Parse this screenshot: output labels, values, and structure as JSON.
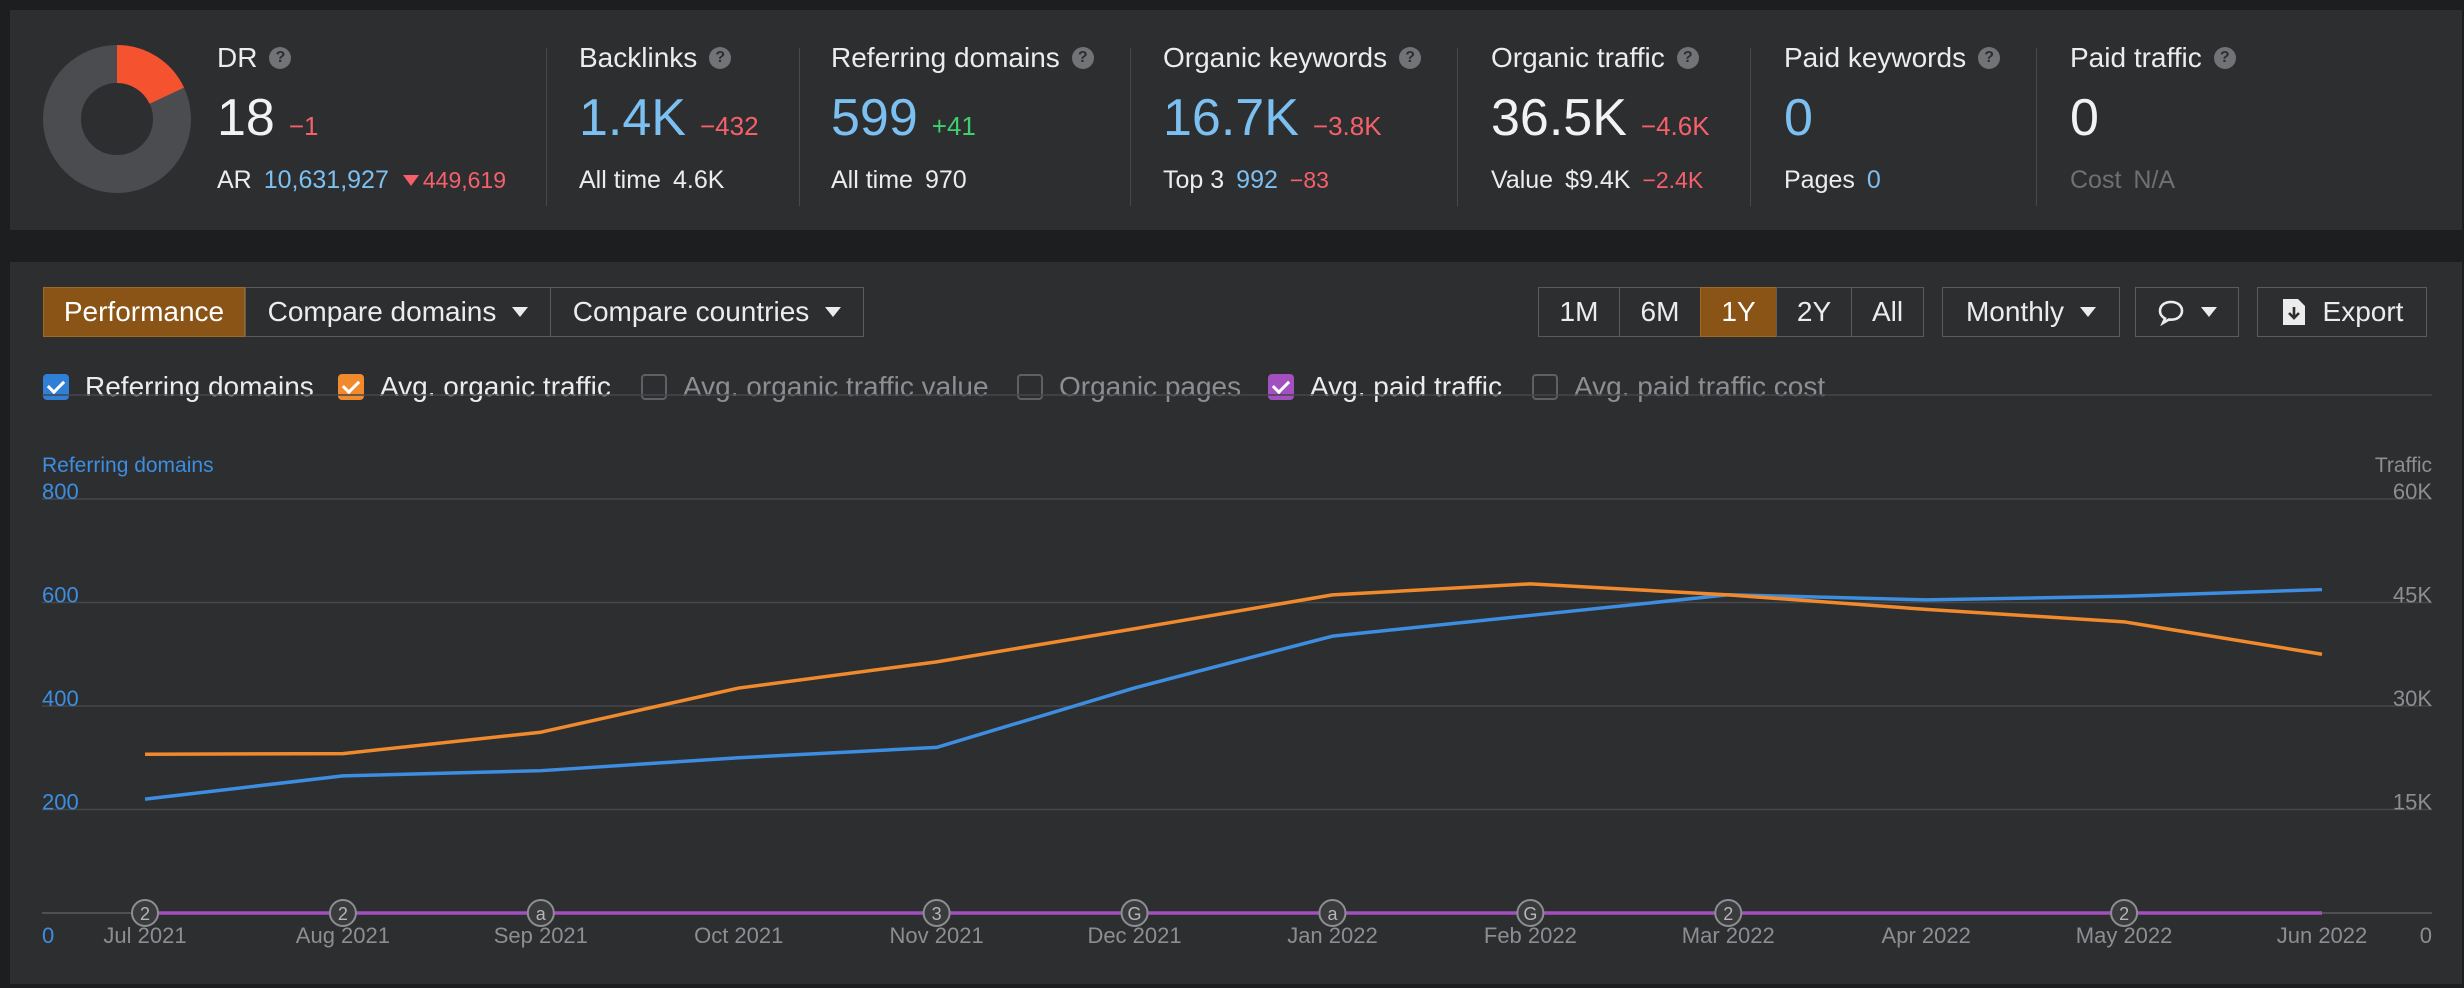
{
  "metrics": {
    "dr": {
      "title": "DR",
      "value": "18",
      "delta": "−1",
      "ar_label": "AR",
      "ar_value": "10,631,927",
      "ar_delta": "449,619",
      "rating_fraction": 0.18
    },
    "backlinks": {
      "title": "Backlinks",
      "value": "1.4K",
      "delta": "−432",
      "sub_label": "All time",
      "sub_value": "4.6K"
    },
    "referring_domains": {
      "title": "Referring domains",
      "value": "599",
      "delta": "+41",
      "sub_label": "All time",
      "sub_value": "970"
    },
    "organic_keywords": {
      "title": "Organic keywords",
      "value": "16.7K",
      "delta": "−3.8K",
      "sub_label": "Top 3",
      "sub_value": "992",
      "sub_delta": "−83"
    },
    "organic_traffic": {
      "title": "Organic traffic",
      "value": "36.5K",
      "delta": "−4.6K",
      "sub_label": "Value",
      "sub_value": "$9.4K",
      "sub_delta": "−2.4K"
    },
    "paid_keywords": {
      "title": "Paid keywords",
      "value": "0",
      "sub_label": "Pages",
      "sub_value": "0"
    },
    "paid_traffic": {
      "title": "Paid traffic",
      "value": "0",
      "sub_label": "Cost",
      "sub_value": "N/A"
    }
  },
  "toolbar": {
    "tabs": [
      "Performance",
      "Compare domains",
      "Compare countries"
    ],
    "ranges": [
      "1M",
      "6M",
      "1Y",
      "2Y",
      "All"
    ],
    "active_range": "1Y",
    "interval": "Monthly",
    "export_label": "Export"
  },
  "toggles": [
    {
      "label": "Referring domains",
      "checked": true,
      "color": "#2f7fd6"
    },
    {
      "label": "Avg. organic traffic",
      "checked": true,
      "color": "#f08a2c"
    },
    {
      "label": "Avg. organic traffic value",
      "checked": false
    },
    {
      "label": "Organic pages",
      "checked": false
    },
    {
      "label": "Avg. paid traffic",
      "checked": true,
      "color": "#a24fbf"
    },
    {
      "label": "Avg. paid traffic cost",
      "checked": false
    }
  ],
  "chart_data": {
    "type": "line",
    "left_axis_label": "Referring domains",
    "right_axis_label": "Traffic",
    "x": [
      "Jul 2021",
      "Aug 2021",
      "Sep 2021",
      "Oct 2021",
      "Nov 2021",
      "Dec 2021",
      "Jan 2022",
      "Feb 2022",
      "Mar 2022",
      "Apr 2022",
      "May 2022",
      "Jun 2022"
    ],
    "left_ticks": [
      "0",
      "200",
      "400",
      "600",
      "800"
    ],
    "right_ticks": [
      "0",
      "15K",
      "30K",
      "45K",
      "60K"
    ],
    "ylim_left": [
      0,
      800
    ],
    "ylim_right": [
      0,
      60000
    ],
    "grid": true,
    "series": [
      {
        "name": "Referring domains",
        "axis": "left",
        "color": "#3d8de0",
        "values": [
          220,
          265,
          275,
          300,
          320,
          435,
          535,
          575,
          615,
          605,
          612,
          625
        ]
      },
      {
        "name": "Avg. organic traffic",
        "axis": "right",
        "color": "#f08a2c",
        "values": [
          23000,
          23100,
          26200,
          32600,
          36400,
          41200,
          46100,
          47700,
          46100,
          44000,
          42200,
          37500
        ]
      },
      {
        "name": "Avg. paid traffic",
        "axis": "right",
        "color": "#a24fbf",
        "values": [
          0,
          0,
          0,
          0,
          0,
          0,
          0,
          0,
          0,
          0,
          0,
          0
        ]
      }
    ],
    "annotations": [
      {
        "x": "Jul 2021",
        "label": "2"
      },
      {
        "x": "Aug 2021",
        "label": "2"
      },
      {
        "x": "Sep 2021",
        "label": "a"
      },
      {
        "x": "Nov 2021",
        "label": "3"
      },
      {
        "x": "Dec 2021",
        "label": "G"
      },
      {
        "x": "Jan 2022",
        "label": "a"
      },
      {
        "x": "Feb 2022",
        "label": "G"
      },
      {
        "x": "Mar 2022",
        "label": "2"
      },
      {
        "x": "May 2022",
        "label": "2"
      }
    ]
  }
}
